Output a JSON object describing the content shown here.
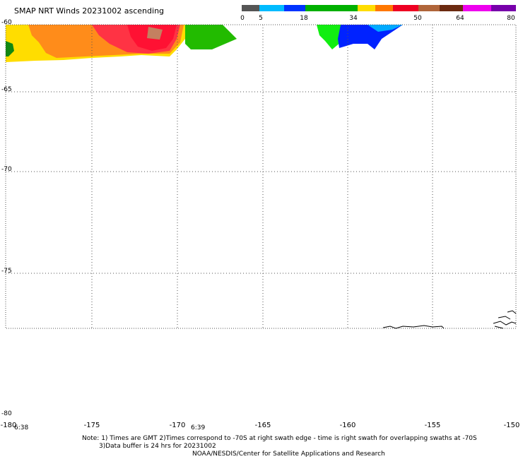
{
  "title": "SMAP NRT Winds 20231002 ascending",
  "colorbar": {
    "ticks": [
      "0",
      "5",
      "18",
      "34",
      "50",
      "64",
      "80"
    ],
    "colors": [
      "#555555",
      "#00ccff",
      "#0055ff",
      "#00bb00",
      "#ffff00",
      "#ff8800",
      "#ff0000",
      "#a05a2c",
      "#ff00ff",
      "#7700aa"
    ]
  },
  "y_axis": {
    "labels": [
      "-60",
      "-65",
      "-70",
      "-75",
      "-80"
    ]
  },
  "x_axis": {
    "labels": [
      "-180",
      "-175",
      "-170",
      "-165",
      "-160",
      "-155",
      "-150"
    ]
  },
  "times": [
    "6:38",
    "6:39"
  ],
  "notes": {
    "line1": "Note: 1) Times are GMT 2)Times correspond to -70S at right swath edge - time is right swath for overlapping swaths at -70S",
    "line2": "3)Data buffer is 24 hrs for 20231002",
    "line3": "NOAA/NESDIS/Center for Satellite Applications and Research"
  }
}
